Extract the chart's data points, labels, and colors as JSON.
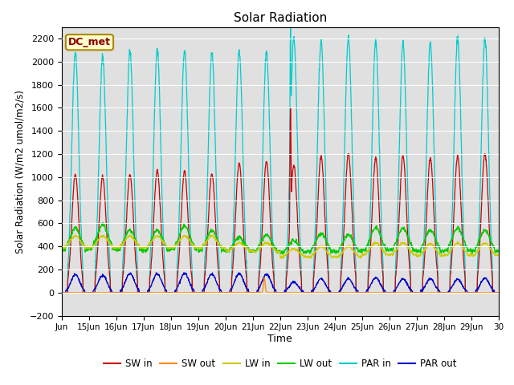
{
  "title": "Solar Radiation",
  "ylabel": "Solar Radiation (W/m2 umol/m2/s)",
  "xlabel": "Time",
  "ylim": [
    -200,
    2300
  ],
  "yticks": [
    -200,
    0,
    200,
    400,
    600,
    800,
    1000,
    1200,
    1400,
    1600,
    1800,
    2000,
    2200
  ],
  "xlim_start": 0,
  "xlim_end": 16,
  "bg_color": "#e0e0e0",
  "legend_label": "DC_met",
  "series": {
    "SW_in": {
      "color": "#cc0000",
      "label": "SW in"
    },
    "SW_out": {
      "color": "#ff8800",
      "label": "SW out"
    },
    "LW_in": {
      "color": "#cccc00",
      "label": "LW in"
    },
    "LW_out": {
      "color": "#00cc00",
      "label": "LW out"
    },
    "PAR_in": {
      "color": "#00cccc",
      "label": "PAR in"
    },
    "PAR_out": {
      "color": "#0000cc",
      "label": "PAR out"
    }
  },
  "x_tick_labels": [
    "Jun",
    "15Jun",
    "16Jun",
    "17Jun",
    "18Jun",
    "19Jun",
    "20Jun",
    "21Jun",
    "22Jun",
    "23Jun",
    "24Jun",
    "25Jun",
    "26Jun",
    "27Jun",
    "28Jun",
    "29Jun",
    "30"
  ],
  "x_tick_pos": [
    0,
    1,
    2,
    3,
    4,
    5,
    6,
    7,
    8,
    9,
    10,
    11,
    12,
    13,
    14,
    15,
    16
  ],
  "SW_in_peaks": [
    1020,
    1000,
    1020,
    1050,
    1050,
    1030,
    1120,
    1130,
    1100,
    1180,
    1200,
    1160,
    1180,
    1160,
    1180,
    1200
  ],
  "PAR_in_peaks": [
    2080,
    2040,
    2080,
    2100,
    2100,
    2080,
    2100,
    2080,
    2200,
    2180,
    2200,
    2180,
    2150,
    2160,
    2200,
    2200
  ],
  "LW_out_day_peaks": [
    560,
    590,
    540,
    540,
    580,
    540,
    480,
    500,
    450,
    510,
    500,
    560,
    560,
    540,
    560,
    540
  ],
  "LW_out_night": [
    370,
    380,
    370,
    370,
    380,
    365,
    360,
    360,
    350,
    355,
    355,
    370,
    370,
    360,
    365,
    360
  ],
  "LW_in_day": [
    490,
    490,
    490,
    490,
    490,
    490,
    430,
    430,
    380,
    400,
    400,
    430,
    430,
    420,
    430,
    430
  ],
  "LW_in_night": [
    390,
    390,
    390,
    390,
    390,
    385,
    360,
    355,
    310,
    310,
    310,
    330,
    330,
    320,
    325,
    325
  ],
  "PAR_out_peaks": [
    155,
    150,
    165,
    165,
    168,
    160,
    165,
    160,
    90,
    120,
    120,
    130,
    120,
    120,
    115,
    125
  ]
}
